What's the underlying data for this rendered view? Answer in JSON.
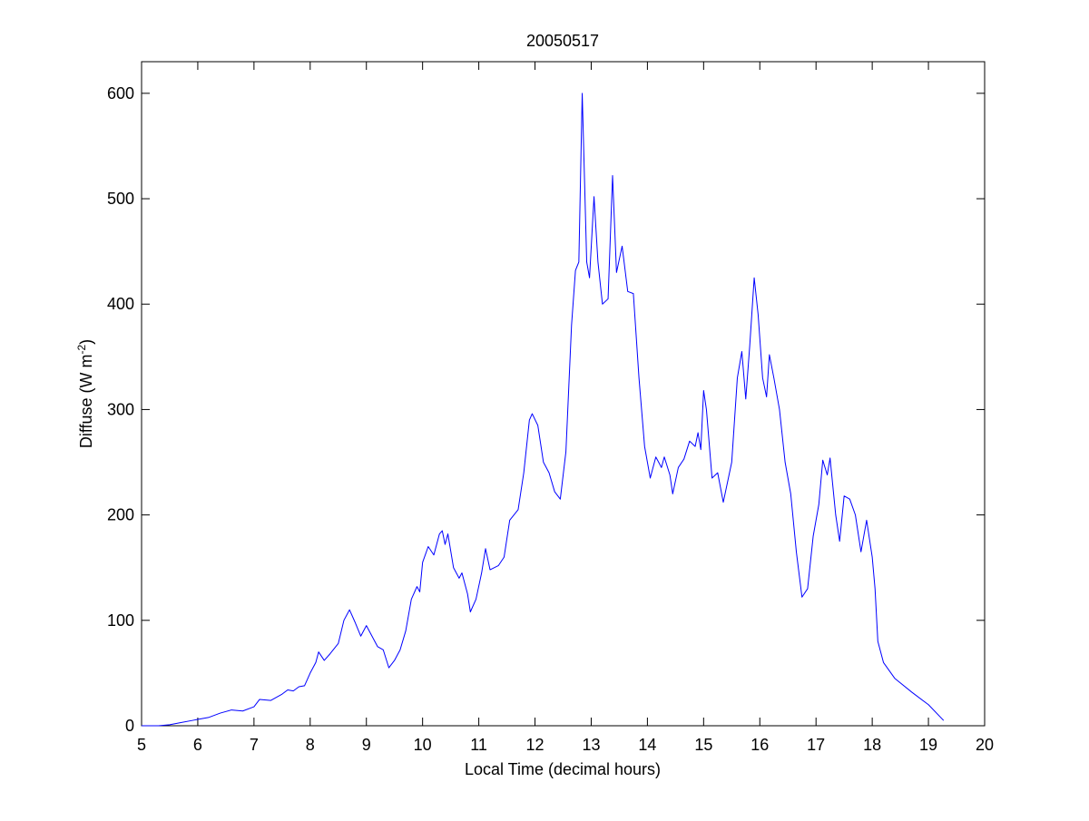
{
  "chart_data": {
    "type": "line",
    "title": "20050517",
    "xlabel": "Local Time (decimal hours)",
    "ylabel": {
      "text": "Diffuse (W m",
      "superscript": "-2",
      "suffix": ")"
    },
    "xlim": [
      5,
      20
    ],
    "xticks": [
      5,
      6,
      7,
      8,
      9,
      10,
      11,
      12,
      13,
      14,
      15,
      16,
      17,
      18,
      19,
      20
    ],
    "ylim": [
      0,
      630
    ],
    "yticks": [
      0,
      100,
      200,
      300,
      400,
      500,
      600
    ],
    "grid": false,
    "series": [
      {
        "name": "Diffuse",
        "color": "#0000ff",
        "x": [
          5.0,
          5.3,
          5.5,
          5.7,
          5.9,
          6.0,
          6.2,
          6.4,
          6.6,
          6.8,
          7.0,
          7.1,
          7.3,
          7.5,
          7.6,
          7.7,
          7.8,
          7.9,
          8.0,
          8.1,
          8.15,
          8.25,
          8.35,
          8.5,
          8.6,
          8.7,
          8.8,
          8.9,
          9.0,
          9.1,
          9.2,
          9.3,
          9.4,
          9.5,
          9.6,
          9.7,
          9.8,
          9.9,
          9.95,
          10.0,
          10.1,
          10.2,
          10.3,
          10.35,
          10.4,
          10.45,
          10.55,
          10.65,
          10.7,
          10.8,
          10.85,
          10.95,
          11.05,
          11.12,
          11.2,
          11.35,
          11.45,
          11.55,
          11.7,
          11.8,
          11.9,
          11.95,
          12.05,
          12.15,
          12.25,
          12.35,
          12.45,
          12.55,
          12.65,
          12.72,
          12.78,
          12.84,
          12.92,
          12.97,
          13.05,
          13.12,
          13.2,
          13.3,
          13.38,
          13.45,
          13.55,
          13.65,
          13.75,
          13.85,
          13.95,
          14.05,
          14.15,
          14.25,
          14.3,
          14.4,
          14.45,
          14.55,
          14.65,
          14.75,
          14.85,
          14.9,
          14.95,
          15.0,
          15.05,
          15.15,
          15.25,
          15.35,
          15.5,
          15.6,
          15.68,
          15.75,
          15.82,
          15.9,
          15.97,
          16.05,
          16.12,
          16.17,
          16.25,
          16.35,
          16.45,
          16.55,
          16.65,
          16.75,
          16.85,
          16.95,
          17.05,
          17.12,
          17.2,
          17.25,
          17.35,
          17.42,
          17.5,
          17.6,
          17.7,
          17.8,
          17.9,
          18.0,
          18.05,
          18.1,
          18.2,
          18.4,
          18.7,
          19.0,
          19.27
        ],
        "values": [
          0,
          0,
          1,
          3,
          5,
          6,
          8,
          12,
          15,
          14,
          18,
          25,
          24,
          30,
          34,
          33,
          37,
          38,
          50,
          60,
          70,
          62,
          68,
          78,
          100,
          110,
          98,
          85,
          95,
          85,
          75,
          72,
          55,
          62,
          72,
          90,
          120,
          132,
          127,
          155,
          170,
          162,
          182,
          185,
          172,
          182,
          150,
          140,
          145,
          125,
          108,
          120,
          145,
          168,
          148,
          152,
          160,
          195,
          205,
          240,
          290,
          296,
          285,
          250,
          240,
          222,
          215,
          260,
          380,
          432,
          440,
          600,
          440,
          425,
          502,
          440,
          400,
          405,
          522,
          430,
          455,
          412,
          410,
          330,
          265,
          235,
          255,
          245,
          255,
          238,
          220,
          245,
          253,
          270,
          265,
          278,
          262,
          318,
          300,
          235,
          240,
          212,
          250,
          330,
          355,
          310,
          360,
          425,
          390,
          330,
          312,
          352,
          330,
          300,
          250,
          220,
          165,
          122,
          130,
          180,
          210,
          252,
          238,
          254,
          200,
          175,
          218,
          215,
          200,
          165,
          195,
          160,
          130,
          80,
          60,
          45,
          32,
          20,
          5
        ]
      }
    ]
  }
}
